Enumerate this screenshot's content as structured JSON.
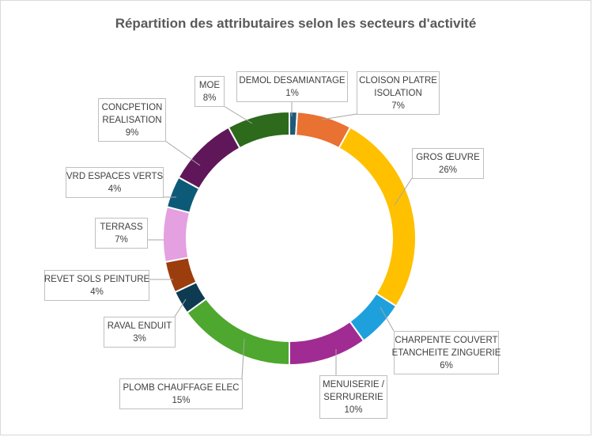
{
  "chart_data": {
    "type": "pie",
    "variant": "doughnut",
    "title": "Répartition des attributaires selon les secteurs d'activité",
    "legend": "none",
    "slices": [
      {
        "lines": [
          "DEMOL DESAMIANTAGE"
        ],
        "pct_label": "1%",
        "value": 1,
        "color": "#1f5a7a"
      },
      {
        "lines": [
          "CLOISON PLATRE",
          "ISOLATION"
        ],
        "pct_label": "7%",
        "value": 7,
        "color": "#e97132"
      },
      {
        "lines": [
          "GROS ŒUVRE"
        ],
        "pct_label": "26%",
        "value": 26,
        "color": "#ffc000"
      },
      {
        "lines": [
          "CHARPENTE COUVERT",
          "ETANCHEITE ZINGUERIE"
        ],
        "pct_label": "6%",
        "value": 6,
        "color": "#1ea0dc"
      },
      {
        "lines": [
          "MENUISERIE /",
          "SERRURERIE"
        ],
        "pct_label": "10%",
        "value": 10,
        "color": "#a02b93"
      },
      {
        "lines": [
          "PLOMB CHAUFFAGE ELEC"
        ],
        "pct_label": "15%",
        "value": 15,
        "color": "#4ea72e"
      },
      {
        "lines": [
          "RAVAL ENDUIT"
        ],
        "pct_label": "3%",
        "value": 3,
        "color": "#0e3b52"
      },
      {
        "lines": [
          "REVET SOLS PEINTURE"
        ],
        "pct_label": "4%",
        "value": 4,
        "color": "#9c3d0e"
      },
      {
        "lines": [
          "TERRASS"
        ],
        "pct_label": "7%",
        "value": 7,
        "color": "#e4a0e0"
      },
      {
        "lines": [
          "VRD ESPACES VERTS"
        ],
        "pct_label": "4%",
        "value": 4,
        "color": "#0d5a78"
      },
      {
        "lines": [
          "CONCPETION",
          "REALISATION"
        ],
        "pct_label": "9%",
        "value": 9,
        "color": "#60175a"
      },
      {
        "lines": [
          "MOE"
        ],
        "pct_label": "8%",
        "value": 8,
        "color": "#2d6a1c"
      }
    ]
  }
}
